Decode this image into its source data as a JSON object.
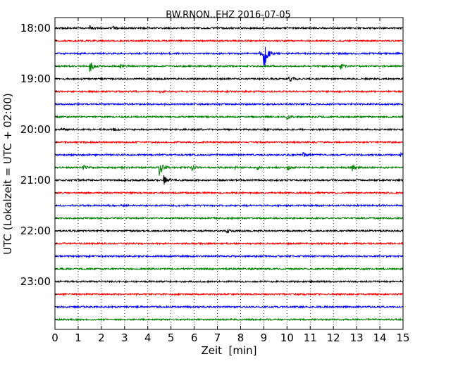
{
  "chart_data": {
    "type": "line",
    "subtype": "helicorder",
    "title": "BW.RNON..EHZ 2016-07-05",
    "xlabel": "Zeit  [min]",
    "ylabel": "UTC (Lokalzeit = UTC + 02:00)",
    "xlim": [
      0,
      15
    ],
    "x_ticks": [
      0,
      1,
      2,
      3,
      4,
      5,
      6,
      7,
      8,
      9,
      10,
      11,
      12,
      13,
      14,
      15
    ],
    "x_tick_labels": [
      "0",
      "1",
      "2",
      "3",
      "4",
      "5",
      "6",
      "7",
      "8",
      "9",
      "10",
      "11",
      "12",
      "13",
      "14",
      "15"
    ],
    "y_tick_labels": [
      "18:00",
      "19:00",
      "20:00",
      "21:00",
      "22:00",
      "23:00"
    ],
    "y_tick_rows": [
      0,
      4,
      8,
      12,
      16,
      20
    ],
    "grid": {
      "x": true,
      "y": false,
      "style": "dotted"
    },
    "trace_colors": [
      "#000000",
      "#ff0000",
      "#0000ff",
      "#008000"
    ],
    "rows": [
      {
        "start": "18:00",
        "events": [
          {
            "t": 1.5,
            "amp": 3
          },
          {
            "t": 2.5,
            "amp": 3
          }
        ]
      },
      {
        "start": "18:15",
        "events": []
      },
      {
        "start": "18:30",
        "events": [
          {
            "t": 9.0,
            "amp": 26
          },
          {
            "t": 8.8,
            "amp": 8
          }
        ]
      },
      {
        "start": "18:45",
        "events": [
          {
            "t": 1.5,
            "amp": 9
          },
          {
            "t": 2.8,
            "amp": 3
          },
          {
            "t": 12.3,
            "amp": 4
          }
        ]
      },
      {
        "start": "19:00",
        "events": [
          {
            "t": 10.1,
            "amp": 7
          }
        ]
      },
      {
        "start": "19:15",
        "events": [
          {
            "t": 4.5,
            "amp": 2
          }
        ]
      },
      {
        "start": "19:30",
        "events": []
      },
      {
        "start": "19:45",
        "events": [
          {
            "t": 10.0,
            "amp": 3
          }
        ]
      },
      {
        "start": "20:00",
        "events": [
          {
            "t": 0.3,
            "amp": 2
          },
          {
            "t": 2.5,
            "amp": 2
          }
        ]
      },
      {
        "start": "20:15",
        "events": []
      },
      {
        "start": "20:30",
        "events": [
          {
            "t": 10.7,
            "amp": 3
          },
          {
            "t": 14.9,
            "amp": 3
          }
        ]
      },
      {
        "start": "20:45",
        "events": [
          {
            "t": 1.2,
            "amp": 4
          },
          {
            "t": 2.9,
            "amp": 4
          },
          {
            "t": 4.5,
            "amp": 13
          },
          {
            "t": 5.9,
            "amp": 4
          },
          {
            "t": 7.7,
            "amp": 3
          },
          {
            "t": 8.7,
            "amp": 3
          },
          {
            "t": 10.0,
            "amp": 4
          },
          {
            "t": 12.8,
            "amp": 5
          }
        ]
      },
      {
        "start": "21:00",
        "events": [
          {
            "t": 4.7,
            "amp": 8
          },
          {
            "t": 3.0,
            "amp": 2
          }
        ]
      },
      {
        "start": "21:15",
        "events": []
      },
      {
        "start": "21:30",
        "events": []
      },
      {
        "start": "21:45",
        "events": []
      },
      {
        "start": "22:00",
        "events": [
          {
            "t": 7.4,
            "amp": 2
          }
        ]
      },
      {
        "start": "22:15",
        "events": []
      },
      {
        "start": "22:30",
        "events": []
      },
      {
        "start": "22:45",
        "events": []
      },
      {
        "start": "23:00",
        "events": []
      },
      {
        "start": "23:15",
        "events": []
      },
      {
        "start": "23:30",
        "events": []
      },
      {
        "start": "23:45",
        "events": []
      }
    ]
  }
}
